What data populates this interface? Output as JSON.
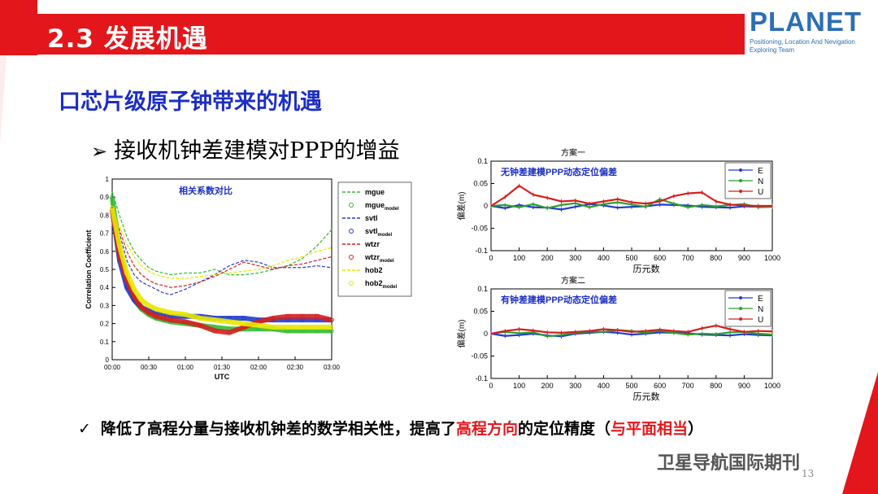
{
  "slide": {
    "title": "2.3 发展机遇",
    "heading": "口芯片级原子钟带来的机遇",
    "subheading_marker": "➢",
    "subheading": "接收机钟差建模对PPP的增益",
    "conclusion_marker": "✓",
    "conclusion_prefix": "降低了高程分量与接收机钟差的数学相关性，提高了",
    "conclusion_highlight1": "高程方向",
    "conclusion_mid": "的定位精度（",
    "conclusion_highlight2": "与平面相当",
    "conclusion_suffix": "）",
    "page_number": "13",
    "watermark": "卫星导航国际期刊"
  },
  "logo": {
    "word": "PLANET",
    "line1": "Positioning, Location And Nevigation",
    "line2": "Exploring Team"
  },
  "colors": {
    "brand_red": "#e3171b",
    "heading_blue": "#1c2ec4",
    "logo_blue": "#2c6fb4"
  },
  "chart_data": [
    {
      "type": "line",
      "annotation": "相关系数对比",
      "xlabel": "UTC",
      "ylabel": "Correlation Coefficient",
      "xticks": [
        "00:00",
        "00:30",
        "01:00",
        "01:30",
        "02:00",
        "02:30",
        "03:00"
      ],
      "yticks": [
        "0",
        "0.1",
        "0.2",
        "0.3",
        "0.4",
        "0.5",
        "0.6",
        "0.7",
        "0.8",
        "0.9",
        "1"
      ],
      "ylim": [
        0,
        1
      ],
      "legend": [
        {
          "name": "mgue",
          "sub": "",
          "style": "dashed",
          "color": "#33bb33"
        },
        {
          "name": "mgue",
          "sub": "model",
          "style": "circle",
          "color": "#33bb33"
        },
        {
          "name": "svtl",
          "sub": "",
          "style": "dashed",
          "color": "#1f3ccf"
        },
        {
          "name": "svtl",
          "sub": "model",
          "style": "circle",
          "color": "#1f3ccf"
        },
        {
          "name": "wtzr",
          "sub": "",
          "style": "dashed",
          "color": "#d42020"
        },
        {
          "name": "wtzr",
          "sub": "model",
          "style": "circle",
          "color": "#d42020"
        },
        {
          "name": "hob2",
          "sub": "",
          "style": "dashed",
          "color": "#e8e800"
        },
        {
          "name": "hob2",
          "sub": "model",
          "style": "circle",
          "color": "#e8e800"
        }
      ],
      "series": [
        {
          "key": "mgue",
          "color": "#33bb33",
          "style": "dashed",
          "x": [
            0,
            0.1,
            0.2,
            0.3,
            0.4,
            0.5,
            0.6,
            0.7,
            0.8,
            1.0,
            1.2,
            1.4,
            1.6,
            1.8,
            2.0,
            2.2,
            2.4,
            2.6,
            2.8,
            3.0
          ],
          "y": [
            0.93,
            0.8,
            0.68,
            0.6,
            0.55,
            0.51,
            0.49,
            0.48,
            0.47,
            0.48,
            0.48,
            0.5,
            0.47,
            0.47,
            0.48,
            0.5,
            0.52,
            0.56,
            0.63,
            0.72
          ]
        },
        {
          "key": "svtl",
          "color": "#1f3ccf",
          "style": "dashed",
          "x": [
            0,
            0.1,
            0.2,
            0.3,
            0.4,
            0.5,
            0.6,
            0.7,
            0.8,
            1.0,
            1.2,
            1.4,
            1.6,
            1.8,
            2.0,
            2.2,
            2.4,
            2.6,
            2.8,
            3.0
          ],
          "y": [
            0.84,
            0.7,
            0.55,
            0.47,
            0.43,
            0.41,
            0.39,
            0.37,
            0.36,
            0.39,
            0.43,
            0.47,
            0.52,
            0.55,
            0.54,
            0.51,
            0.51,
            0.51,
            0.52,
            0.51
          ]
        },
        {
          "key": "wtzr",
          "color": "#d42020",
          "style": "dashed",
          "x": [
            0,
            0.1,
            0.2,
            0.3,
            0.4,
            0.5,
            0.6,
            0.7,
            0.8,
            1.0,
            1.2,
            1.4,
            1.6,
            1.8,
            2.0,
            2.2,
            2.4,
            2.6,
            2.8,
            3.0
          ],
          "y": [
            0.83,
            0.72,
            0.6,
            0.52,
            0.47,
            0.44,
            0.42,
            0.41,
            0.4,
            0.41,
            0.43,
            0.46,
            0.5,
            0.54,
            0.52,
            0.5,
            0.52,
            0.53,
            0.55,
            0.57
          ]
        },
        {
          "key": "hob2",
          "color": "#e8e800",
          "style": "dashed",
          "x": [
            0,
            0.1,
            0.2,
            0.3,
            0.4,
            0.5,
            0.6,
            0.7,
            0.8,
            1.0,
            1.2,
            1.4,
            1.6,
            1.8,
            2.0,
            2.2,
            2.4,
            2.6,
            2.8,
            3.0
          ],
          "y": [
            0.84,
            0.74,
            0.64,
            0.57,
            0.52,
            0.49,
            0.47,
            0.46,
            0.45,
            0.45,
            0.46,
            0.47,
            0.48,
            0.49,
            0.5,
            0.52,
            0.55,
            0.57,
            0.6,
            0.62
          ]
        },
        {
          "key": "mgue_model",
          "color": "#33bb33",
          "style": "circle",
          "x": [
            0,
            0.1,
            0.2,
            0.3,
            0.4,
            0.5,
            0.6,
            0.7,
            0.8,
            1.0,
            1.2,
            1.4,
            1.6,
            1.8,
            2.0,
            2.2,
            2.4,
            2.6,
            2.8,
            3.0
          ],
          "y": [
            0.9,
            0.6,
            0.43,
            0.33,
            0.28,
            0.25,
            0.23,
            0.22,
            0.21,
            0.2,
            0.19,
            0.18,
            0.17,
            0.17,
            0.17,
            0.17,
            0.16,
            0.16,
            0.16,
            0.16
          ]
        },
        {
          "key": "svtl_model",
          "color": "#1f3ccf",
          "style": "circle",
          "x": [
            0,
            0.1,
            0.2,
            0.3,
            0.4,
            0.5,
            0.6,
            0.7,
            0.8,
            1.0,
            1.2,
            1.4,
            1.6,
            1.8,
            2.0,
            2.2,
            2.4,
            2.6,
            2.8,
            3.0
          ],
          "y": [
            0.83,
            0.55,
            0.4,
            0.33,
            0.29,
            0.27,
            0.26,
            0.25,
            0.24,
            0.24,
            0.24,
            0.23,
            0.23,
            0.23,
            0.22,
            0.22,
            0.22,
            0.22,
            0.22,
            0.22
          ]
        },
        {
          "key": "wtzr_model",
          "color": "#d42020",
          "style": "circle",
          "x": [
            0,
            0.1,
            0.2,
            0.3,
            0.4,
            0.5,
            0.6,
            0.7,
            0.8,
            1.0,
            1.2,
            1.4,
            1.6,
            1.8,
            2.0,
            2.2,
            2.4,
            2.6,
            2.8,
            3.0
          ],
          "y": [
            0.83,
            0.58,
            0.44,
            0.35,
            0.29,
            0.26,
            0.24,
            0.23,
            0.22,
            0.21,
            0.19,
            0.16,
            0.15,
            0.18,
            0.21,
            0.23,
            0.24,
            0.24,
            0.24,
            0.22
          ]
        },
        {
          "key": "hob2_model",
          "color": "#e8e800",
          "style": "circle",
          "x": [
            0,
            0.1,
            0.2,
            0.3,
            0.4,
            0.5,
            0.6,
            0.7,
            0.8,
            1.0,
            1.2,
            1.4,
            1.6,
            1.8,
            2.0,
            2.2,
            2.4,
            2.6,
            2.8,
            3.0
          ],
          "y": [
            0.84,
            0.63,
            0.48,
            0.39,
            0.33,
            0.3,
            0.28,
            0.27,
            0.26,
            0.25,
            0.23,
            0.22,
            0.21,
            0.2,
            0.19,
            0.18,
            0.18,
            0.18,
            0.18,
            0.18
          ]
        }
      ]
    },
    {
      "type": "line",
      "title": "方案一",
      "annotation": "无钟差建模PPP动态定位偏差",
      "xlabel": "历元数",
      "ylabel": "偏差(m)",
      "xticks": [
        "0",
        "100",
        "200",
        "300",
        "400",
        "500",
        "600",
        "700",
        "800",
        "900",
        "1000"
      ],
      "yticks": [
        "-0.1",
        "-0.05",
        "0",
        "0.05",
        "0.1"
      ],
      "ylim": [
        -0.1,
        0.1
      ],
      "series": [
        {
          "name": "E",
          "color": "#1f3ccf",
          "x": [
            0,
            50,
            100,
            150,
            200,
            250,
            300,
            350,
            400,
            450,
            500,
            550,
            600,
            650,
            700,
            750,
            800,
            850,
            900,
            950,
            1000
          ],
          "y": [
            0,
            -0.005,
            0.002,
            -0.003,
            -0.004,
            -0.008,
            -0.002,
            0.004,
            0.001,
            -0.004,
            -0.002,
            -0.001,
            0.003,
            0.002,
            0.001,
            -0.002,
            -0.003,
            -0.004,
            -0.001,
            -0.002,
            -0.001
          ]
        },
        {
          "name": "N",
          "color": "#2ca02c",
          "x": [
            0,
            50,
            100,
            150,
            200,
            250,
            300,
            350,
            400,
            450,
            500,
            550,
            600,
            650,
            700,
            750,
            800,
            850,
            900,
            950,
            1000
          ],
          "y": [
            0,
            0.002,
            -0.003,
            0.004,
            -0.005,
            0.002,
            0.006,
            -0.003,
            0.004,
            0.008,
            0.003,
            -0.002,
            0.015,
            0.005,
            -0.003,
            0.002,
            -0.001,
            0.002,
            0.004,
            -0.003,
            -0.002
          ]
        },
        {
          "name": "U",
          "color": "#d42020",
          "x": [
            0,
            50,
            100,
            150,
            200,
            250,
            300,
            350,
            400,
            450,
            500,
            550,
            600,
            650,
            700,
            750,
            800,
            850,
            900,
            950,
            1000
          ],
          "y": [
            0,
            0.02,
            0.045,
            0.025,
            0.018,
            0.01,
            0.012,
            0.005,
            0.01,
            0.015,
            0.008,
            0.005,
            0.01,
            0.022,
            0.028,
            0.03,
            0.01,
            0.003,
            0.001,
            0.0,
            0.0
          ]
        }
      ]
    },
    {
      "type": "line",
      "title": "方案二",
      "annotation": "有钟差建模PPP动态定位偏差",
      "xlabel": "历元数",
      "ylabel": "偏差(m)",
      "xticks": [
        "0",
        "100",
        "200",
        "300",
        "400",
        "500",
        "600",
        "700",
        "800",
        "900",
        "1000"
      ],
      "yticks": [
        "-0.1",
        "-0.05",
        "0",
        "0.05",
        "0.1"
      ],
      "ylim": [
        -0.1,
        0.1
      ],
      "series": [
        {
          "name": "E",
          "color": "#1f3ccf",
          "x": [
            0,
            50,
            100,
            150,
            200,
            250,
            300,
            350,
            400,
            450,
            500,
            550,
            600,
            650,
            700,
            750,
            800,
            850,
            900,
            950,
            1000
          ],
          "y": [
            0,
            -0.005,
            -0.003,
            0.0,
            -0.004,
            -0.006,
            0.0,
            0.002,
            0.004,
            0.002,
            -0.002,
            0.0,
            0.003,
            0.002,
            0.001,
            -0.002,
            -0.003,
            -0.004,
            -0.001,
            -0.003,
            -0.004
          ]
        },
        {
          "name": "N",
          "color": "#2ca02c",
          "x": [
            0,
            50,
            100,
            150,
            200,
            250,
            300,
            350,
            400,
            450,
            500,
            550,
            600,
            650,
            700,
            750,
            800,
            850,
            900,
            950,
            1000
          ],
          "y": [
            0,
            0.004,
            0.001,
            0.003,
            -0.006,
            -0.003,
            0.002,
            0.005,
            0.004,
            0.008,
            0.006,
            0.002,
            0.007,
            0.002,
            -0.002,
            0.0,
            -0.001,
            0.003,
            0.004,
            0.0,
            -0.002
          ]
        },
        {
          "name": "U",
          "color": "#d42020",
          "x": [
            0,
            50,
            100,
            150,
            200,
            250,
            300,
            350,
            400,
            450,
            500,
            550,
            600,
            650,
            700,
            750,
            800,
            850,
            900,
            950,
            1000
          ],
          "y": [
            0,
            0.006,
            0.01,
            0.007,
            0.003,
            0.002,
            0.004,
            0.006,
            0.01,
            0.008,
            0.004,
            0.006,
            0.009,
            0.006,
            0.004,
            0.012,
            0.018,
            0.01,
            0.004,
            0.006,
            0.005
          ]
        }
      ]
    }
  ]
}
